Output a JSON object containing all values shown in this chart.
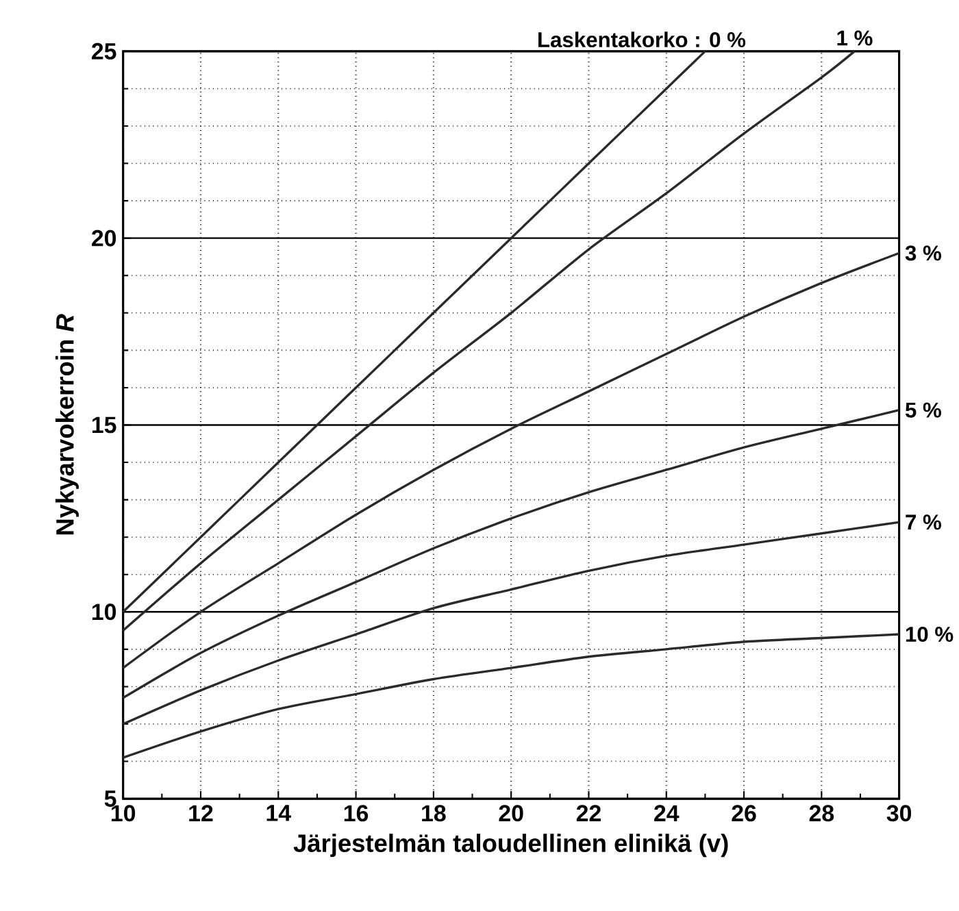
{
  "chart_data": {
    "type": "line",
    "xlabel": "Järjestelmän taloudellinen elinikä (v)",
    "ylabel": "Nykyarvokerroin *R*",
    "legend_title": "Laskentakorko :",
    "xlim": [
      10,
      30
    ],
    "ylim": [
      5,
      25
    ],
    "xticks": [
      10,
      12,
      14,
      16,
      18,
      20,
      22,
      24,
      26,
      28,
      30
    ],
    "yticks": [
      5,
      10,
      15,
      20,
      25
    ],
    "grid": true,
    "legend": false,
    "marker": "none",
    "line_style": "solid",
    "series": [
      {
        "name": "0 %",
        "color": "#2a2a2a",
        "x": [
          10,
          12,
          14,
          16,
          18,
          20,
          22,
          24,
          25
        ],
        "values": [
          10,
          12,
          14,
          16,
          18,
          20,
          22,
          24,
          25
        ]
      },
      {
        "name": "1 %",
        "color": "#2a2a2a",
        "x": [
          10,
          12,
          14,
          16,
          18,
          20,
          22,
          24,
          26,
          28,
          28.85
        ],
        "values": [
          9.5,
          11.3,
          13.0,
          14.7,
          16.4,
          18.0,
          19.7,
          21.2,
          22.8,
          24.3,
          25
        ]
      },
      {
        "name": "3 %",
        "color": "#2a2a2a",
        "x": [
          10,
          12,
          14,
          16,
          18,
          20,
          22,
          24,
          26,
          28,
          30
        ],
        "values": [
          8.5,
          10.0,
          11.3,
          12.6,
          13.8,
          14.9,
          15.9,
          16.9,
          17.9,
          18.8,
          19.6
        ]
      },
      {
        "name": "5 %",
        "color": "#2a2a2a",
        "x": [
          10,
          12,
          14,
          16,
          18,
          20,
          22,
          24,
          26,
          28,
          30
        ],
        "values": [
          7.7,
          8.9,
          9.9,
          10.8,
          11.7,
          12.5,
          13.2,
          13.8,
          14.4,
          14.9,
          15.4
        ]
      },
      {
        "name": "7 %",
        "color": "#2a2a2a",
        "x": [
          10,
          12,
          14,
          16,
          18,
          20,
          22,
          24,
          26,
          28,
          30
        ],
        "values": [
          7.0,
          7.9,
          8.7,
          9.4,
          10.1,
          10.6,
          11.1,
          11.5,
          11.8,
          12.1,
          12.4
        ]
      },
      {
        "name": "10 %",
        "color": "#2a2a2a",
        "x": [
          10,
          12,
          14,
          16,
          18,
          20,
          22,
          24,
          26,
          28,
          30
        ],
        "values": [
          6.1,
          6.8,
          7.4,
          7.8,
          8.2,
          8.5,
          8.8,
          9.0,
          9.2,
          9.3,
          9.4
        ]
      }
    ]
  }
}
